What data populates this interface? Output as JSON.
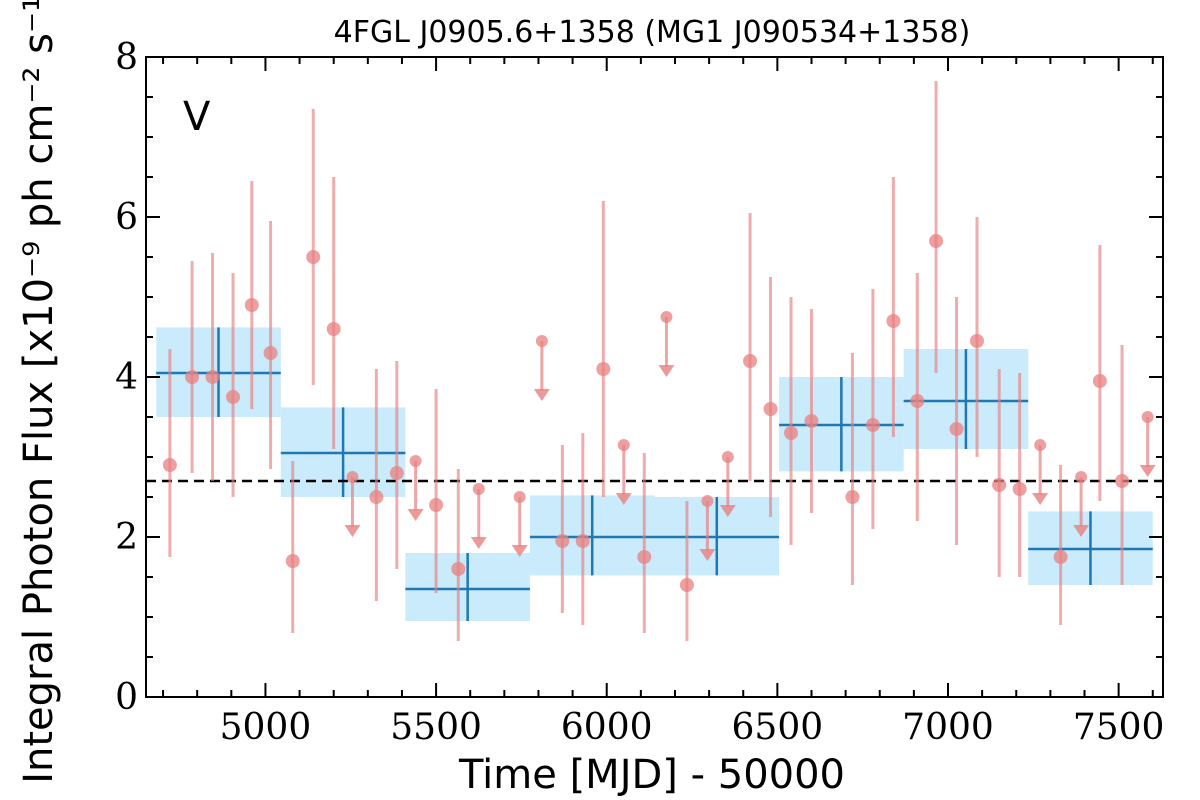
{
  "chart_data": {
    "type": "scatter",
    "title": "4FGL J0905.6+1358 (MG1 J090534+1358)",
    "xlabel": "Time [MJD] - 50000",
    "ylabel": "Integral Photon Flux [x10⁻⁹ ph cm⁻² s⁻¹]",
    "panel_label": "V",
    "xlim": [
      4650,
      7630
    ],
    "ylim": [
      0,
      8
    ],
    "xticks": [
      5000,
      5500,
      6000,
      6500,
      7000,
      7500
    ],
    "yticks": [
      0,
      2,
      4,
      6,
      8
    ],
    "grid": false,
    "reference_level": 2.7,
    "colors": {
      "points": "#e88080",
      "bins_fill": "#b8e4fa",
      "bins_line": "#1f77b4",
      "panel_label": "#1f77b4"
    },
    "series": [
      {
        "name": "",
        "kind": "detections",
        "x": [
          4720,
          4785,
          4845,
          4905,
          4960,
          5015,
          5080,
          5140,
          5200,
          5325,
          5385,
          5500,
          5565,
          5870,
          5930,
          5990,
          6110,
          6235,
          6420,
          6480,
          6540,
          6600,
          6720,
          6780,
          6840,
          6910,
          6965,
          7025,
          7085,
          7150,
          7210,
          7330,
          7445,
          7510
        ],
        "y": [
          2.9,
          4.0,
          4.0,
          3.75,
          4.9,
          4.3,
          1.7,
          5.5,
          4.6,
          2.5,
          2.8,
          2.4,
          1.6,
          1.95,
          1.95,
          4.1,
          1.75,
          1.4,
          4.2,
          3.6,
          3.3,
          3.45,
          2.5,
          3.4,
          4.7,
          3.7,
          5.7,
          3.35,
          4.45,
          2.65,
          2.6,
          1.75,
          3.95,
          2.7
        ],
        "y_low": [
          1.75,
          2.8,
          2.7,
          2.5,
          3.6,
          2.85,
          0.8,
          3.9,
          3.1,
          1.2,
          1.6,
          1.3,
          0.7,
          1.05,
          0.9,
          2.5,
          0.8,
          0.7,
          2.7,
          2.25,
          1.9,
          2.3,
          1.4,
          2.1,
          3.25,
          2.2,
          4.05,
          1.9,
          3.0,
          1.5,
          1.5,
          0.9,
          2.45,
          1.4
        ],
        "y_high": [
          4.35,
          5.45,
          5.55,
          5.3,
          6.45,
          5.95,
          2.95,
          7.35,
          6.5,
          4.1,
          4.2,
          3.85,
          2.85,
          3.15,
          3.3,
          6.2,
          3.05,
          2.45,
          6.05,
          5.25,
          5.0,
          4.85,
          4.3,
          5.1,
          6.5,
          5.3,
          7.7,
          5.0,
          6.0,
          4.1,
          4.05,
          2.9,
          5.65,
          4.4
        ]
      },
      {
        "name": "",
        "kind": "upper_limits",
        "x": [
          5255,
          5440,
          5625,
          5745,
          5810,
          6050,
          6175,
          6295,
          6355,
          7270,
          7390,
          7585
        ],
        "y": [
          2.75,
          2.95,
          2.6,
          2.5,
          4.45,
          3.15,
          4.75,
          2.45,
          3.0,
          3.15,
          2.75,
          3.5
        ]
      },
      {
        "name": "",
        "kind": "binned",
        "x_low": [
          4680,
          5045,
          5410,
          5775,
          6140,
          6505,
          6870,
          7235
        ],
        "x_high": [
          5045,
          5410,
          5775,
          6140,
          6505,
          6870,
          7235,
          7600
        ],
        "y": [
          4.05,
          3.05,
          1.35,
          2.0,
          2.0,
          3.4,
          3.7,
          1.85
        ],
        "y_low": [
          3.5,
          2.5,
          0.95,
          1.52,
          1.52,
          2.82,
          3.1,
          1.4
        ],
        "y_high": [
          4.62,
          3.62,
          1.8,
          2.52,
          2.5,
          4.0,
          4.35,
          2.32
        ]
      }
    ]
  }
}
